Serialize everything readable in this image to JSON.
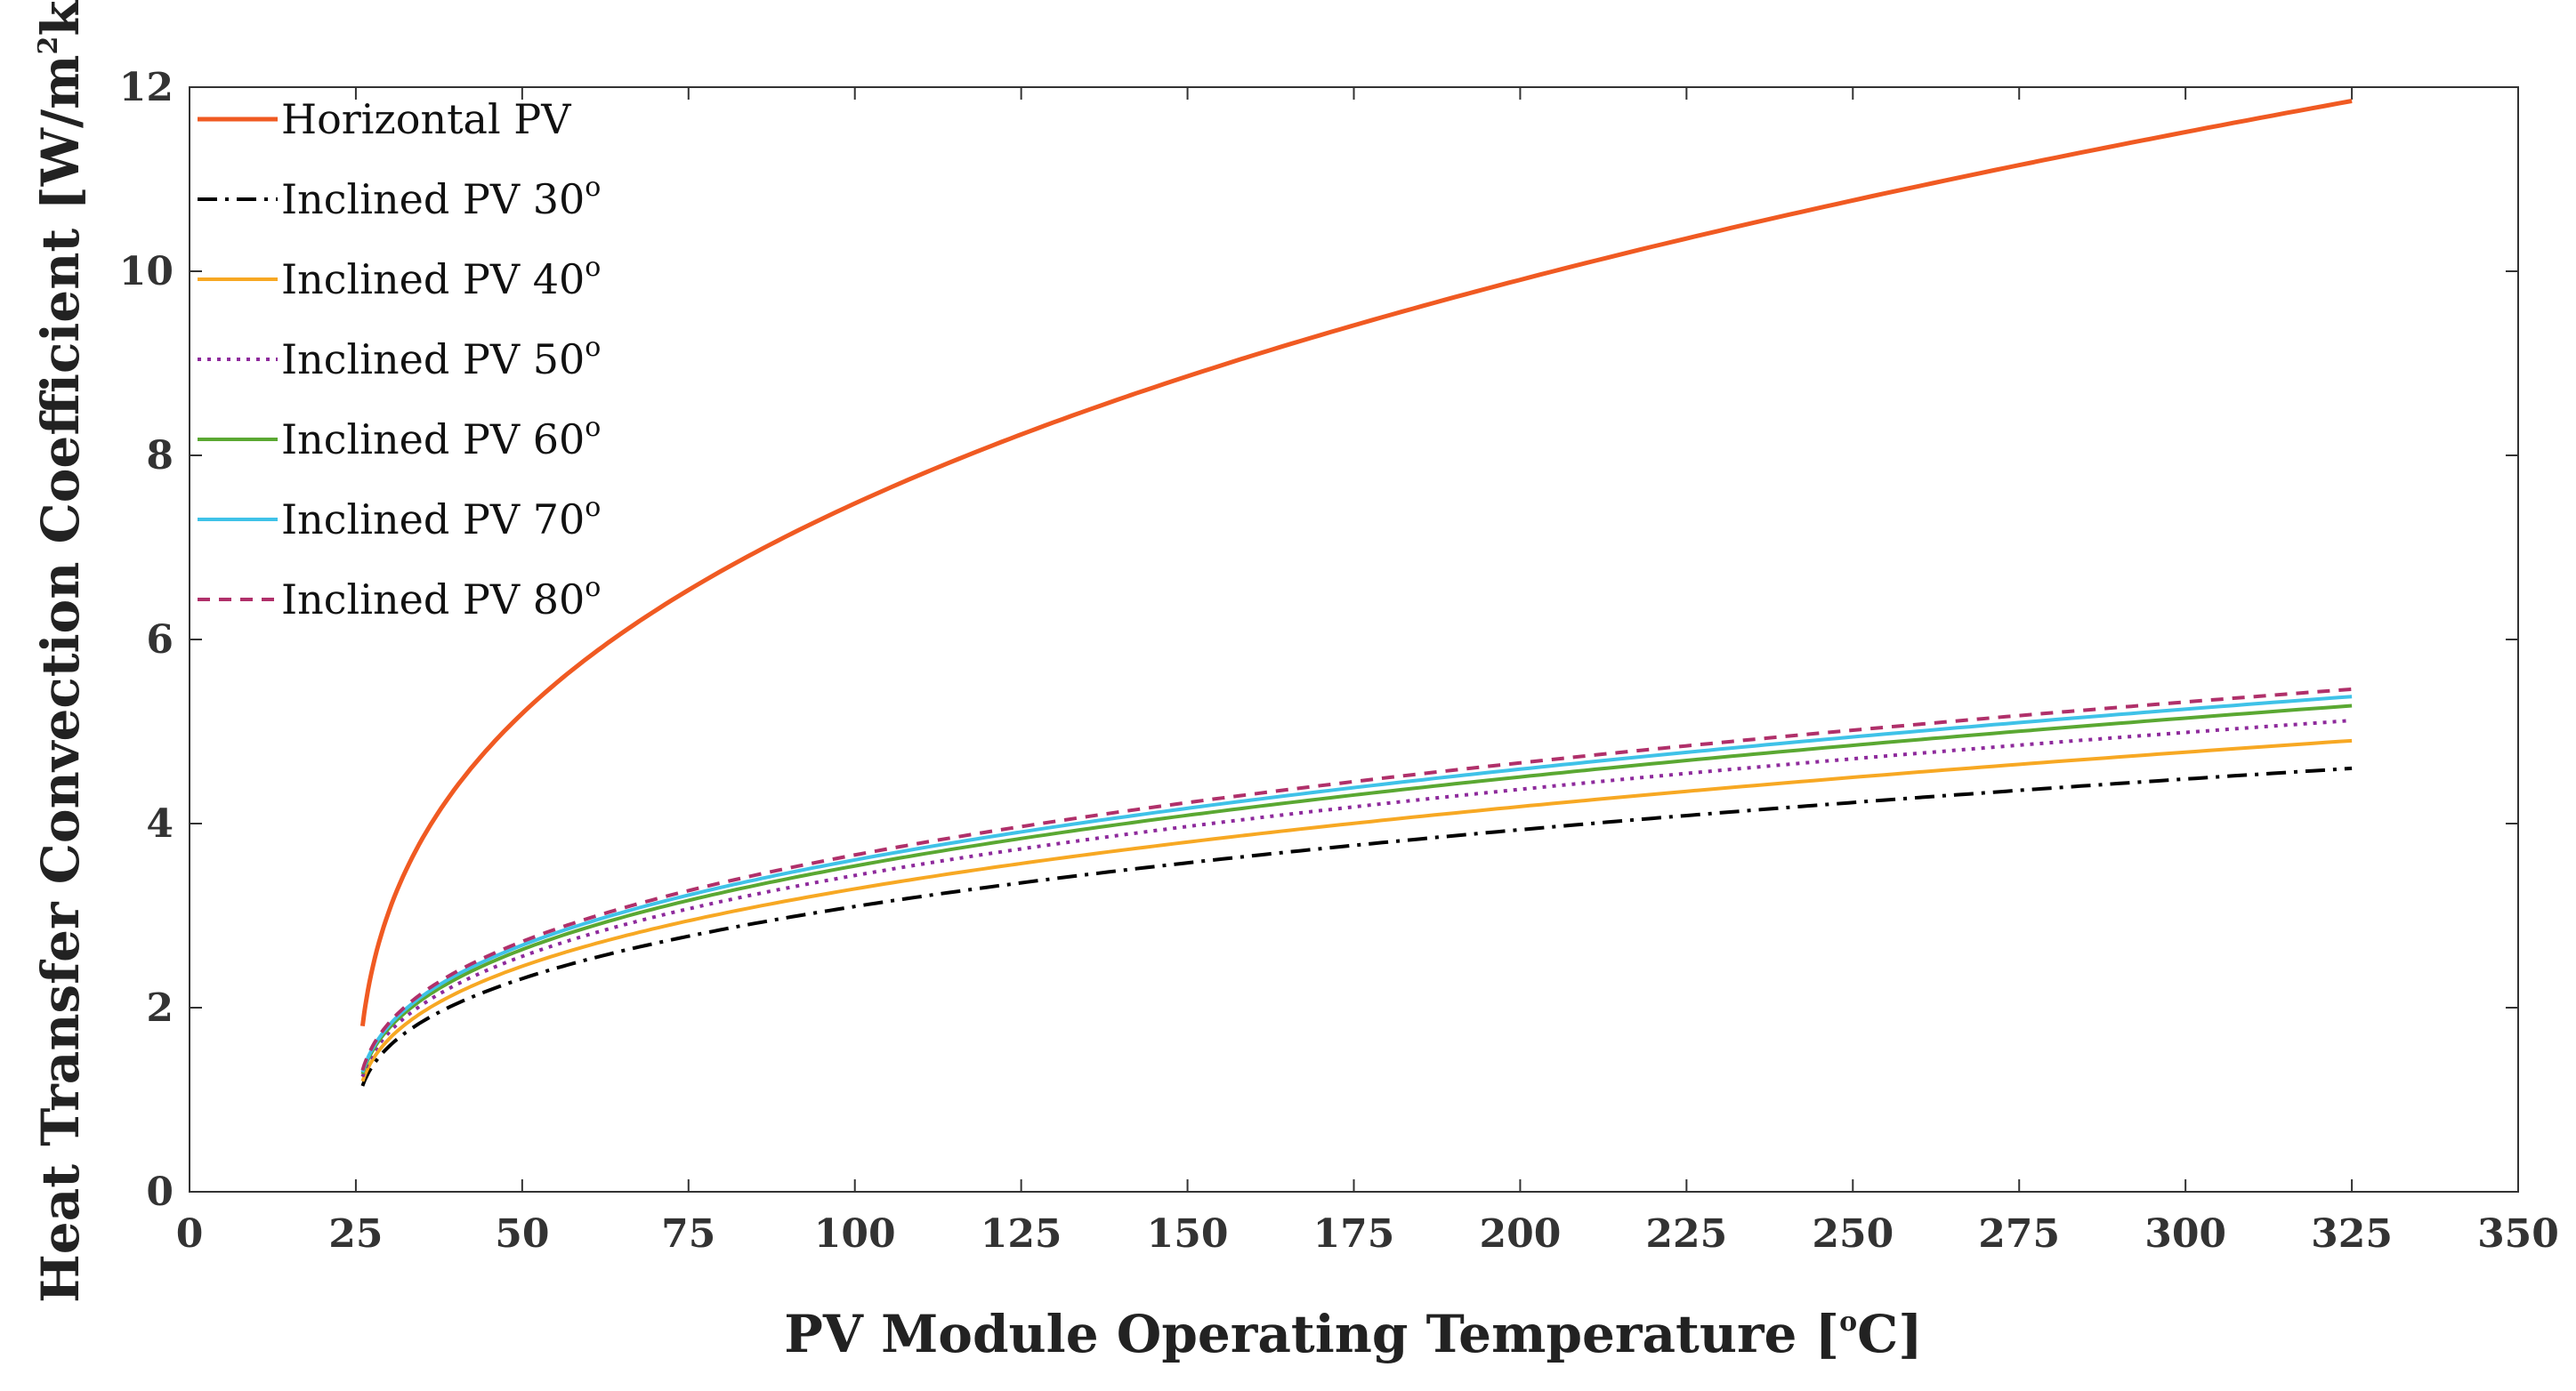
{
  "chart_data": {
    "type": "line",
    "title": "",
    "xlabel": "PV Module Operating Temperature [",
    "xlabel_sup": "o",
    "xlabel_suffix": "C]",
    "ylabel": "Heat Transfer Convection Coefficient [W/m",
    "ylabel_sup": "2",
    "ylabel_suffix": "k]",
    "xlim": [
      0,
      350
    ],
    "ylim": [
      0,
      12
    ],
    "x_ticks": [
      0,
      25,
      50,
      75,
      100,
      125,
      150,
      175,
      200,
      225,
      250,
      275,
      300,
      325,
      350
    ],
    "y_ticks": [
      0,
      2,
      4,
      6,
      8,
      10,
      12
    ],
    "grid": false,
    "legend_position": "top-left",
    "x_start": 26,
    "x_end": 325,
    "series": [
      {
        "name": "Horizontal PV",
        "angle": "",
        "color": "#f05a22",
        "dash": "solid",
        "y_start": 1.8,
        "y_end": 11.85
      },
      {
        "name": "Inclined PV 30",
        "angle": "o",
        "color": "#000000",
        "dash": "dashdot",
        "y_start": 1.15,
        "y_end": 4.6
      },
      {
        "name": "Inclined PV 40",
        "angle": "o",
        "color": "#f7a823",
        "dash": "solid",
        "y_start": 1.2,
        "y_end": 4.9
      },
      {
        "name": "Inclined PV 50",
        "angle": "o",
        "color": "#8e2a9c",
        "dash": "dotted",
        "y_start": 1.25,
        "y_end": 5.12
      },
      {
        "name": "Inclined PV 60",
        "angle": "o",
        "color": "#5aa832",
        "dash": "solid",
        "y_start": 1.28,
        "y_end": 5.28
      },
      {
        "name": "Inclined PV 70",
        "angle": "o",
        "color": "#3fc2e8",
        "dash": "solid",
        "y_start": 1.3,
        "y_end": 5.38
      },
      {
        "name": "Inclined PV 80",
        "angle": "o",
        "color": "#b0306a",
        "dash": "dashed",
        "y_start": 1.32,
        "y_end": 5.46
      }
    ]
  }
}
